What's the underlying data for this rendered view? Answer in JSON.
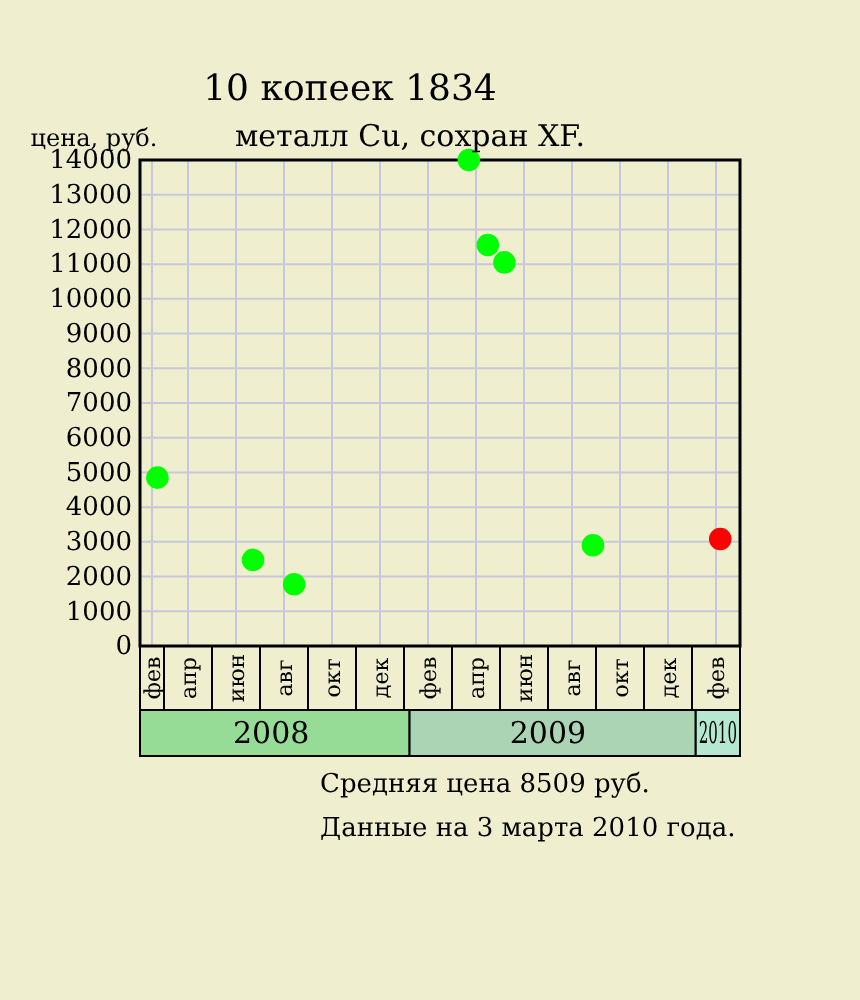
{
  "chart_data": {
    "type": "scatter",
    "title": "10 копеек 1834",
    "subtitle": "металл Cu, сохран XF.",
    "ylabel": "цена, руб.",
    "categories": [
      "фев",
      "апр",
      "июн",
      "авг",
      "окт",
      "дек",
      "фев",
      "апр",
      "июн",
      "авг",
      "окт",
      "дек",
      "фев"
    ],
    "x2lim": [
      "2008-02-01",
      "2010-03-01"
    ],
    "x2ticks": [
      {
        "value": "2008-07-16",
        "label": "2008"
      },
      {
        "value": "2009-07-01",
        "label": "2009"
      },
      {
        "value": "2010-02-01",
        "label": "2010"
      }
    ],
    "ylim": [
      0,
      14000
    ],
    "yticks": [
      0,
      1000,
      2000,
      3000,
      4000,
      5000,
      6000,
      7000,
      8000,
      9000,
      10000,
      11000,
      12000,
      13000,
      14000
    ],
    "grid": true,
    "marker": "circle",
    "legend": false,
    "series": [
      {
        "color": "#00ff00",
        "axis": "x2",
        "x": [
          "2008-02-23",
          "2008-06-23",
          "2008-08-14",
          "2009-03-23",
          "2009-04-16",
          "2009-05-07",
          "2009-08-27"
        ],
        "values": [
          4850,
          2480,
          1780,
          14000,
          11550,
          11050,
          2900
        ]
      },
      {
        "color": "#ff0000",
        "axis": "x2",
        "x": [
          "2010-02-04"
        ],
        "values": [
          3080
        ]
      }
    ],
    "annotations": [
      "Средняя цена 8509 руб.",
      "Данные на 3 марта 2010 года."
    ]
  }
}
